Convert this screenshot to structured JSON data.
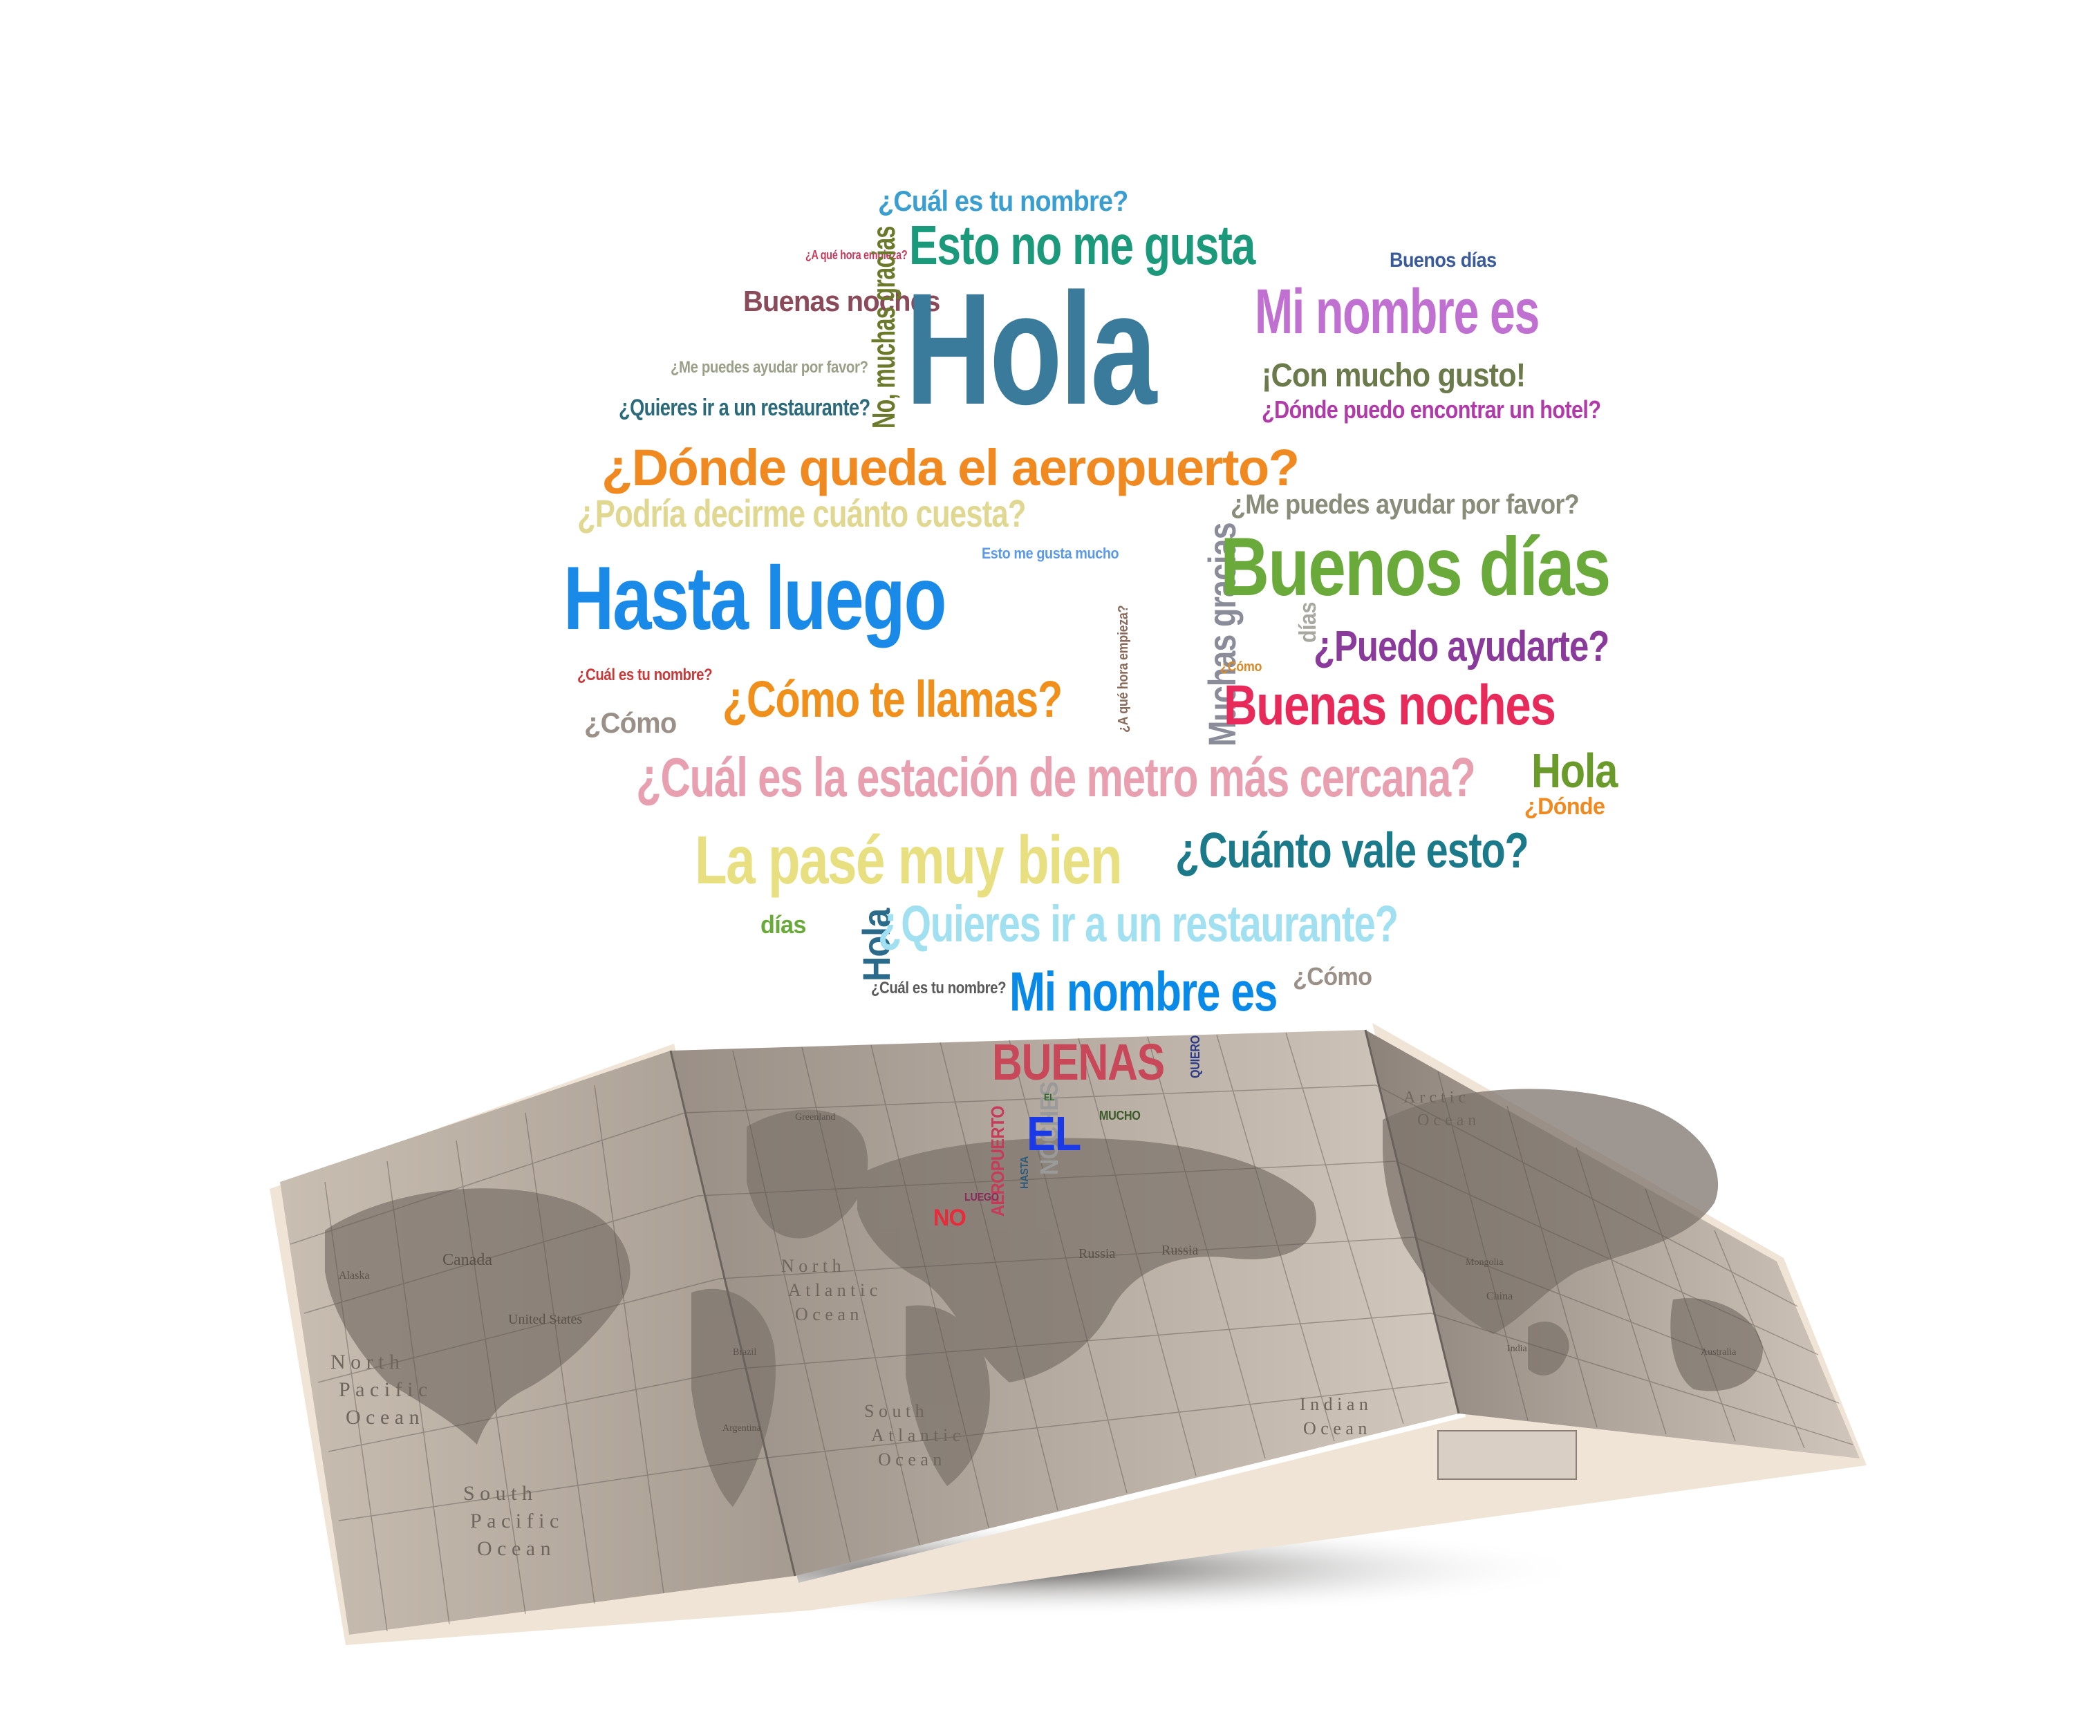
{
  "cloud_words": [
    {
      "id": "w01",
      "text": "¿Cuál es tu nombre?",
      "color": "#3a9fd0"
    },
    {
      "id": "w02",
      "text": "Esto no me gusta",
      "color": "#1a9a7a"
    },
    {
      "id": "w03",
      "text": "Buenos días",
      "color": "#3b5a9a"
    },
    {
      "id": "w04",
      "text": "¿A qué hora empieza?",
      "color": "#c8385a"
    },
    {
      "id": "w05",
      "text": "Buenas noches",
      "color": "#8a4a5a"
    },
    {
      "id": "w06",
      "text": "No, muchas gracias",
      "color": "#6a7a2a"
    },
    {
      "id": "w07",
      "text": "Hola",
      "color": "#3a7a9a"
    },
    {
      "id": "w08",
      "text": "Mi nombre es",
      "color": "#c070d0"
    },
    {
      "id": "w09",
      "text": "¡Con mucho gusto!",
      "color": "#6a7a4a"
    },
    {
      "id": "w10",
      "text": "¿Me puedes ayudar por favor?",
      "color": "#9aa088"
    },
    {
      "id": "w11",
      "text": "¿Quieres ir a un restaurante?",
      "color": "#2a6a7a"
    },
    {
      "id": "w12",
      "text": "¿Dónde puedo encontrar un hotel?",
      "color": "#b03aa8"
    },
    {
      "id": "w13",
      "text": "¿Dónde queda el aeropuerto?",
      "color": "#f08a20"
    },
    {
      "id": "w14",
      "text": "¿Podría decirme cuánto cuesta?",
      "color": "#e0d890"
    },
    {
      "id": "w15",
      "text": "Muchas gracias",
      "color": "#8a8c9a"
    },
    {
      "id": "w16",
      "text": "¿Me puedes ayudar por favor?",
      "color": "#8a8c7a"
    },
    {
      "id": "w17",
      "text": "Esto me gusta mucho",
      "color": "#5a9ae8"
    },
    {
      "id": "w18",
      "text": "Hasta luego",
      "color": "#1a8ae8"
    },
    {
      "id": "w19",
      "text": "Buenos días",
      "color": "#6aaa3a"
    },
    {
      "id": "w20",
      "text": "días",
      "color": "#a8a8a0"
    },
    {
      "id": "w21",
      "text": "¿Puedo ayudarte?",
      "color": "#8a3a9a"
    },
    {
      "id": "w22",
      "text": "¿Cuál es tu nombre?",
      "color": "#c83a3a"
    },
    {
      "id": "w23",
      "text": "¿Cómo te llamas?",
      "color": "#f0901a"
    },
    {
      "id": "w24",
      "text": "¿A qué hora empieza?",
      "color": "#8a6a5a"
    },
    {
      "id": "w25",
      "text": "¿Cómo",
      "color": "#d88a2a"
    },
    {
      "id": "w26",
      "text": "Buenas noches",
      "color": "#e82a5a"
    },
    {
      "id": "w27",
      "text": "¿Cómo",
      "color": "#9a9088"
    },
    {
      "id": "w28",
      "text": "¿Cuál es la estación de metro más cercana?",
      "color": "#e8a0b0"
    },
    {
      "id": "w29",
      "text": "Hola",
      "color": "#6a9a2a"
    },
    {
      "id": "w30",
      "text": "¿Dónde",
      "color": "#f08a20"
    },
    {
      "id": "w31",
      "text": "La pasé muy bien",
      "color": "#e8e080"
    },
    {
      "id": "w32",
      "text": "¿Cuánto vale esto?",
      "color": "#1a7a8a"
    },
    {
      "id": "w33",
      "text": "días",
      "color": "#6aaa3a"
    },
    {
      "id": "w34",
      "text": "Hola",
      "color": "#2a6a8a"
    },
    {
      "id": "w35",
      "text": "¿Quieres ir a un restaurante?",
      "color": "#a0e0f0"
    },
    {
      "id": "w36",
      "text": "¿Cuál es tu nombre?",
      "color": "#5a5a5a"
    },
    {
      "id": "w37",
      "text": "Mi nombre es",
      "color": "#0a8ae8"
    },
    {
      "id": "w38",
      "text": "¿Cómo",
      "color": "#9a9088"
    },
    {
      "id": "w39",
      "text": "BUENAS",
      "color": "#c8485a"
    },
    {
      "id": "w40",
      "text": "QUIERO",
      "color": "#2a3a8a"
    },
    {
      "id": "w41",
      "text": "NOCHES",
      "color": "#9a9a9a"
    },
    {
      "id": "w42",
      "text": "EL",
      "color": "#1a3ae8"
    },
    {
      "id": "w43",
      "text": "MUCHO",
      "color": "#3a5a2a"
    },
    {
      "id": "w44",
      "text": "EL",
      "color": "#2a6a2a"
    },
    {
      "id": "w45",
      "text": "AEROPUERTO",
      "color": "#c83a5a"
    },
    {
      "id": "w46",
      "text": "NO",
      "color": "#e82a3a"
    },
    {
      "id": "w47",
      "text": "LUEGO",
      "color": "#8a2a5a"
    },
    {
      "id": "w48",
      "text": "HASTA",
      "color": "#2a5a7a"
    }
  ],
  "map": {
    "labels": {
      "canada": "Canada",
      "alaska": "Alaska",
      "united_states": "United States",
      "greenland": "Greenland",
      "russia_left": "Russia",
      "russia_right": "Russia",
      "mongolia": "Mongolia",
      "china": "China",
      "india": "India",
      "australia": "Australia",
      "brazil": "Brazil",
      "argentina": "Argentina"
    },
    "oceans": {
      "north_pacific": [
        "North",
        "Pacific",
        "Ocean"
      ],
      "south_pacific": [
        "South",
        "Pacific",
        "Ocean"
      ],
      "north_atlantic": [
        "North",
        "Atlantic",
        "Ocean"
      ],
      "south_atlantic": [
        "South",
        "Atlantic",
        "Ocean"
      ],
      "indian": [
        "Indian",
        "Ocean"
      ],
      "arctic": [
        "Arctic",
        "Ocean"
      ]
    }
  }
}
